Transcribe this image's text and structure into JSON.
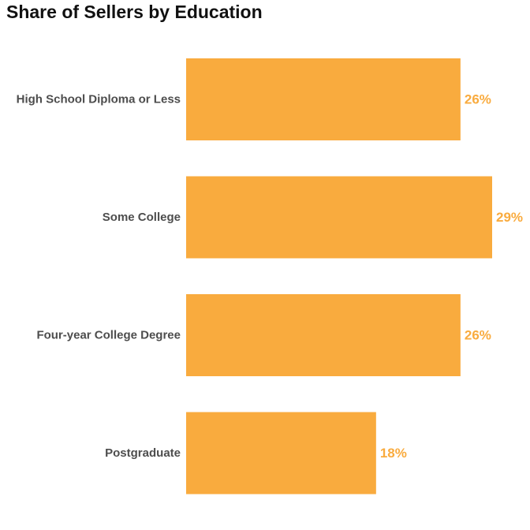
{
  "chart_data": {
    "type": "bar",
    "orientation": "horizontal",
    "title": "Share of Sellers by Education",
    "categories": [
      "High School Diploma or Less",
      "Some College",
      "Four-year College Degree",
      "Postgraduate"
    ],
    "values": [
      26,
      29,
      26,
      18
    ],
    "value_labels": [
      "26%",
      "29%",
      "26%",
      "18%"
    ],
    "unit": "%",
    "xlim": [
      0,
      29
    ],
    "grid": false,
    "legend": "none",
    "bar_color": "#f9ab3e",
    "label_color": "#f9ab3e"
  }
}
